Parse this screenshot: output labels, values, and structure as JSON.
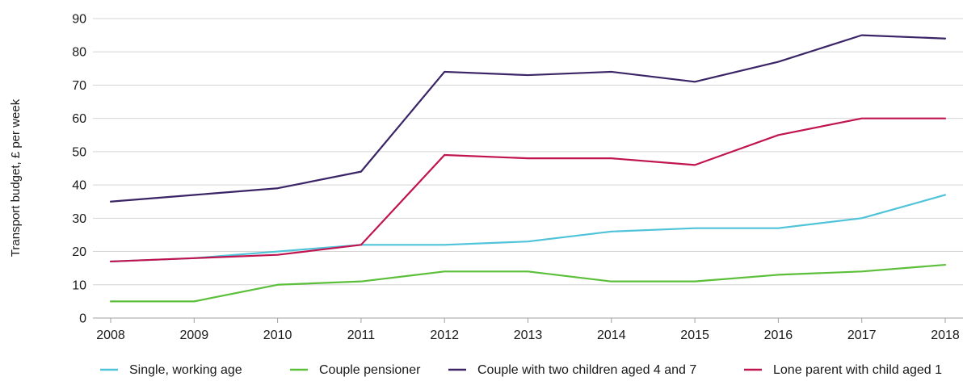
{
  "chart_data": {
    "type": "line",
    "title": "",
    "xlabel": "",
    "ylabel": "Transport budget, £ per week",
    "x": [
      "2008",
      "2009",
      "2010",
      "2011",
      "2012",
      "2013",
      "2014",
      "2015",
      "2016",
      "2017",
      "2018"
    ],
    "ylim": [
      0,
      90
    ],
    "yticks": [
      "0",
      "10",
      "20",
      "30",
      "40",
      "50",
      "60",
      "70",
      "80",
      "90"
    ],
    "grid": "horizontal",
    "legend_position": "bottom",
    "series": [
      {
        "name": "Single, working age",
        "color": "#4fc3d9",
        "values": [
          17,
          18,
          20,
          22,
          22,
          23,
          26,
          27,
          27,
          30,
          37
        ]
      },
      {
        "name": "Couple pensioner",
        "color": "#5cbf3a",
        "values": [
          5,
          5,
          10,
          11,
          14,
          14,
          11,
          11,
          13,
          14,
          16
        ]
      },
      {
        "name": "Couple with two children aged 4 and 7",
        "color": "#3a2466",
        "values": [
          35,
          37,
          39,
          44,
          74,
          73,
          74,
          71,
          77,
          85,
          84
        ]
      },
      {
        "name": "Lone parent with child aged 1",
        "color": "#c0134f",
        "values": [
          17,
          18,
          19,
          22,
          49,
          48,
          48,
          46,
          55,
          60,
          60
        ]
      }
    ]
  }
}
